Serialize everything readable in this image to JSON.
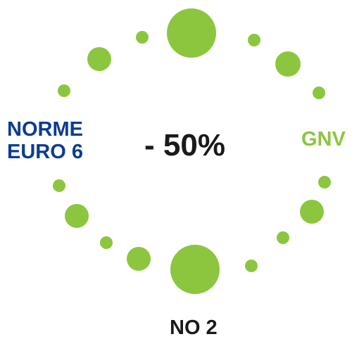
{
  "colors": {
    "dot_green": "#8CC63F",
    "brand_blue": "#0B3C91",
    "text_dark": "#1A1A1A"
  },
  "center": {
    "value": "- 50%"
  },
  "labels": {
    "left": {
      "line1": "NORME",
      "line2": "EURO 6"
    },
    "right": "GNV",
    "bottom": "NO 2"
  }
}
